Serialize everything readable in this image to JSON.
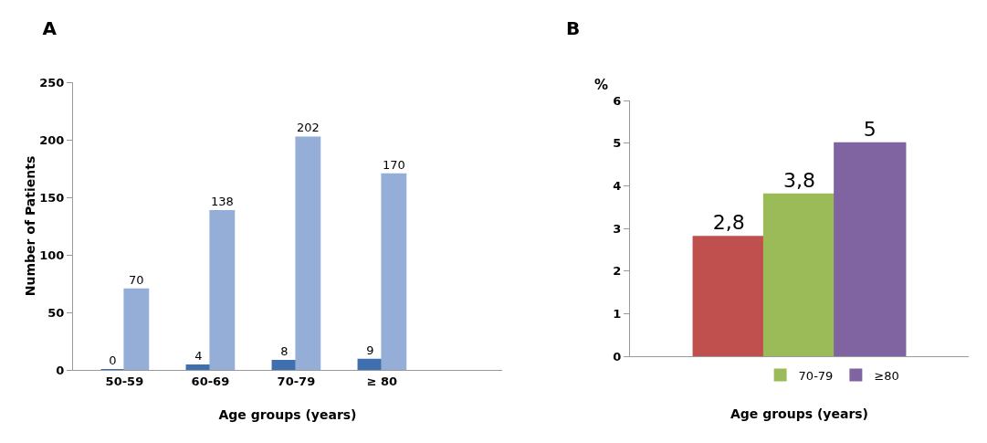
{
  "chart_data": [
    {
      "type": "bar",
      "title": "A",
      "xlabel": "Age groups (years)",
      "ylabel": "Number of Patients",
      "categories": [
        "50-59",
        "60-69",
        "70-79",
        "≥ 80"
      ],
      "series": [
        {
          "color": "#3f6fae",
          "values": [
            0,
            4,
            8,
            9
          ]
        },
        {
          "color": "#94aed8",
          "values": [
            70,
            138,
            202,
            170
          ]
        }
      ],
      "ylim": [
        0,
        250
      ],
      "yticks": [
        0,
        50,
        100,
        150,
        200,
        250
      ],
      "grid": false,
      "legend": false,
      "data_labels": true
    },
    {
      "type": "bar",
      "title": "B",
      "xlabel": "Age groups (years)",
      "ylabel": "%",
      "categories": [
        null
      ],
      "series": [
        {
          "color": "#c0504d",
          "values": [
            2.8
          ],
          "value_labels": [
            "2,8"
          ]
        },
        {
          "name": "70-79",
          "color": "#9bbb59",
          "values": [
            3.8
          ],
          "value_labels": [
            "3,8"
          ]
        },
        {
          "name": "≥80",
          "color": "#8064a2",
          "values": [
            5
          ],
          "value_labels": [
            "5"
          ]
        }
      ],
      "ylim": [
        0,
        6
      ],
      "yticks": [
        0,
        1,
        2,
        3,
        4,
        5,
        6
      ],
      "grid": false,
      "legend": "bottom"
    }
  ]
}
